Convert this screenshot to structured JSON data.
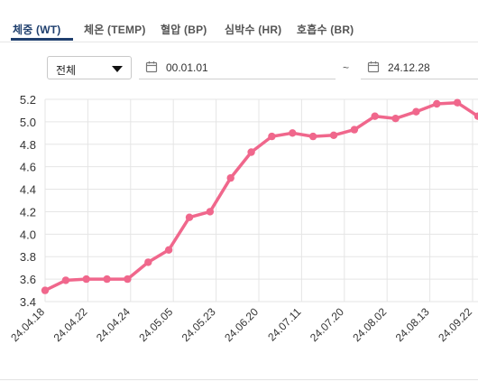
{
  "tabs": [
    {
      "label": "체중 (WT)",
      "active": true
    },
    {
      "label": "체온 (TEMP)",
      "active": false
    },
    {
      "label": "혈압 (BP)",
      "active": false
    },
    {
      "label": "심박수 (HR)",
      "active": false
    },
    {
      "label": "호흡수 (BR)",
      "active": false
    }
  ],
  "filter": {
    "period_select": "전체",
    "date_from": "00.01.01",
    "separator": "~",
    "date_to": "24.12.28"
  },
  "colors": {
    "accent": "#1f3f6e",
    "series": "#f0678c",
    "grid": "#e5e5e5"
  },
  "chart_data": {
    "type": "line",
    "title": "",
    "xlabel": "",
    "ylabel": "",
    "ylim": [
      3.4,
      5.2
    ],
    "yticks": [
      "5.2",
      "5.0",
      "4.8",
      "4.6",
      "4.4",
      "4.2",
      "4.0",
      "3.8",
      "3.6",
      "3.4"
    ],
    "xticks": [
      "24.04.18",
      "24.04.22",
      "24.04.24",
      "24.05.05",
      "24.05.23",
      "24.06.20",
      "24.07.11",
      "24.07.20",
      "24.08.02",
      "24.08.13",
      "24.09.22"
    ],
    "grid": true,
    "series": [
      {
        "values": [
          3.5,
          3.59,
          3.6,
          3.6,
          3.6,
          3.75,
          3.86,
          4.15,
          4.2,
          4.5,
          4.73,
          4.87,
          4.9,
          4.87,
          4.88,
          4.93,
          5.05,
          5.03,
          5.09,
          5.16,
          5.17,
          5.05
        ]
      }
    ]
  }
}
